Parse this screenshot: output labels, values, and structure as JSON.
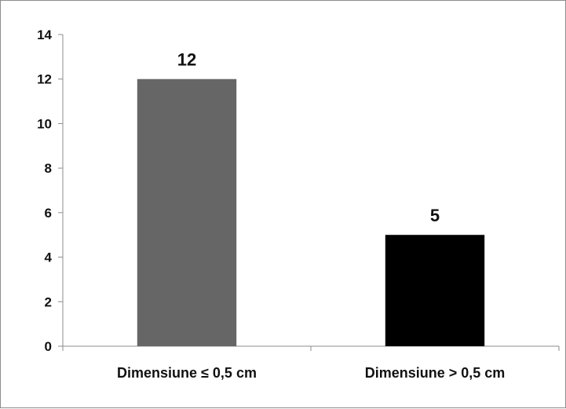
{
  "chart_data": {
    "type": "bar",
    "categories": [
      "Dimensiune ≤ 0,5 cm",
      "Dimensiune > 0,5 cm"
    ],
    "values": [
      12,
      5
    ],
    "data_labels": [
      "12",
      "5"
    ],
    "bar_colors": [
      "#666666",
      "#000000"
    ],
    "ylim": [
      0,
      14
    ],
    "yticks": [
      0,
      2,
      4,
      6,
      8,
      10,
      12,
      14
    ],
    "title": "",
    "xlabel": "",
    "ylabel": "",
    "grid": false,
    "legend": "none"
  },
  "colors": {
    "axis": "#8c8c8c",
    "text": "#111111",
    "border": "#8c8c8c"
  }
}
